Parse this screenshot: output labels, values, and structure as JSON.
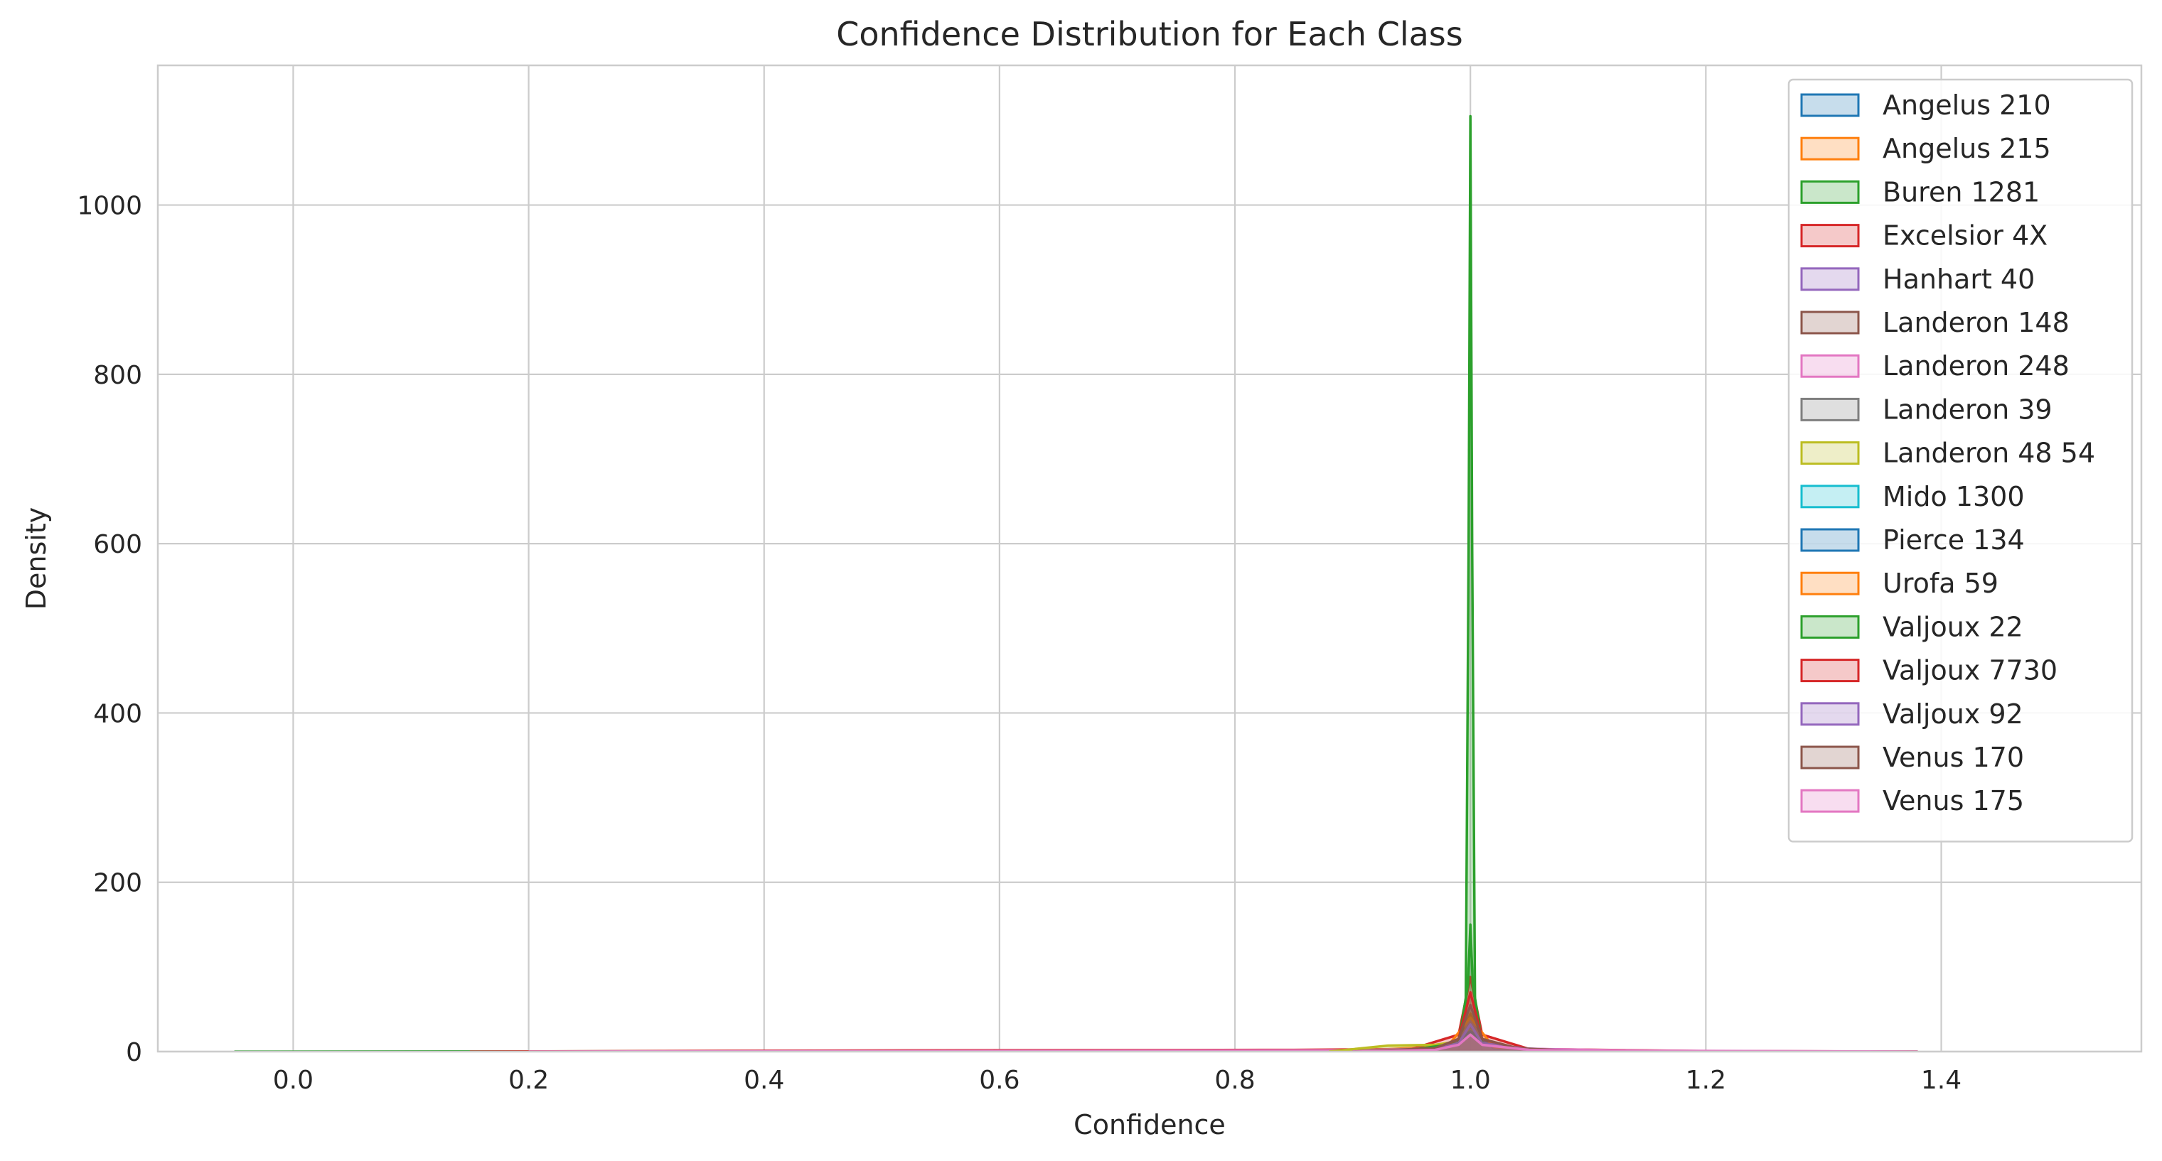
{
  "chart_data": {
    "type": "area",
    "title": "Confidence Distribution for Each Class",
    "xlabel": "Confidence",
    "ylabel": "Density",
    "xlim": [
      -0.115,
      1.57
    ],
    "ylim": [
      0,
      1165
    ],
    "xticks": [
      0.0,
      0.2,
      0.4,
      0.6,
      0.8,
      1.0,
      1.2,
      1.4
    ],
    "xtick_labels": [
      "0.0",
      "0.2",
      "0.4",
      "0.6",
      "0.8",
      "1.0",
      "1.2",
      "1.4"
    ],
    "yticks": [
      0,
      200,
      400,
      600,
      800,
      1000
    ],
    "ytick_labels": [
      "0",
      "200",
      "400",
      "600",
      "800",
      "1000"
    ],
    "grid": true,
    "legend_position": "top-right",
    "series": [
      {
        "name": "Angelus 210",
        "color": "#1f77b4",
        "points": [
          [
            0.88,
            0
          ],
          [
            0.94,
            0.8
          ],
          [
            0.985,
            6
          ],
          [
            1.0,
            22
          ],
          [
            1.015,
            6
          ],
          [
            1.06,
            0.8
          ],
          [
            1.12,
            0
          ]
        ]
      },
      {
        "name": "Angelus 215",
        "color": "#ff7f0e",
        "points": [
          [
            0.86,
            0
          ],
          [
            0.92,
            2
          ],
          [
            0.96,
            5
          ],
          [
            0.99,
            12
          ],
          [
            1.0,
            45
          ],
          [
            1.01,
            12
          ],
          [
            1.04,
            3
          ],
          [
            1.1,
            0
          ]
        ]
      },
      {
        "name": "Buren 1281",
        "color": "#2ca02c",
        "points": [
          [
            -0.05,
            0
          ],
          [
            0.3,
            0.3
          ],
          [
            0.99,
            0.6
          ],
          [
            0.996,
            40
          ],
          [
            0.9985,
            600
          ],
          [
            1.0,
            1105
          ],
          [
            1.0015,
            600
          ],
          [
            1.004,
            40
          ],
          [
            1.01,
            0.6
          ],
          [
            1.38,
            0
          ]
        ]
      },
      {
        "name": "Excelsior 4X",
        "color": "#d62728",
        "points": [
          [
            0.15,
            0
          ],
          [
            0.55,
            1.5
          ],
          [
            0.85,
            2
          ],
          [
            0.95,
            3
          ],
          [
            0.99,
            20
          ],
          [
            1.0,
            88
          ],
          [
            1.01,
            20
          ],
          [
            1.05,
            3
          ],
          [
            1.2,
            0.5
          ],
          [
            1.38,
            0
          ]
        ]
      },
      {
        "name": "Hanhart 40",
        "color": "#9467bd",
        "points": [
          [
            0.9,
            0
          ],
          [
            0.97,
            2
          ],
          [
            0.99,
            10
          ],
          [
            1.0,
            38
          ],
          [
            1.01,
            12
          ],
          [
            1.04,
            4
          ],
          [
            1.12,
            0
          ]
        ]
      },
      {
        "name": "Landeron 148",
        "color": "#8c564b",
        "points": [
          [
            0.9,
            0
          ],
          [
            0.97,
            3
          ],
          [
            0.99,
            12
          ],
          [
            1.0,
            30
          ],
          [
            1.01,
            12
          ],
          [
            1.04,
            3
          ],
          [
            1.1,
            0
          ]
        ]
      },
      {
        "name": "Landeron 248",
        "color": "#e377c2",
        "points": [
          [
            0.2,
            0
          ],
          [
            0.6,
            0.8
          ],
          [
            0.9,
            1.5
          ],
          [
            0.98,
            4
          ],
          [
            1.0,
            16
          ],
          [
            1.02,
            4
          ],
          [
            1.15,
            1
          ],
          [
            1.38,
            0
          ]
        ]
      },
      {
        "name": "Landeron 39",
        "color": "#7f7f7f",
        "points": [
          [
            0.9,
            0
          ],
          [
            0.97,
            2
          ],
          [
            0.99,
            8
          ],
          [
            1.0,
            28
          ],
          [
            1.01,
            8
          ],
          [
            1.05,
            2
          ],
          [
            1.12,
            0
          ]
        ]
      },
      {
        "name": "Landeron 48 54",
        "color": "#bcbd22",
        "points": [
          [
            0.88,
            0
          ],
          [
            0.93,
            7
          ],
          [
            0.97,
            8
          ],
          [
            0.99,
            12
          ],
          [
            1.0,
            25
          ],
          [
            1.01,
            10
          ],
          [
            1.04,
            3
          ],
          [
            1.1,
            0
          ]
        ]
      },
      {
        "name": "Mido 1300",
        "color": "#17becf",
        "points": [
          [
            0.9,
            0
          ],
          [
            0.97,
            2
          ],
          [
            0.99,
            8
          ],
          [
            1.0,
            22
          ],
          [
            1.01,
            8
          ],
          [
            1.05,
            2
          ],
          [
            1.12,
            0
          ]
        ]
      },
      {
        "name": "Pierce 134",
        "color": "#1f77b4",
        "points": [
          [
            0.92,
            0
          ],
          [
            0.98,
            4
          ],
          [
            1.0,
            24
          ],
          [
            1.02,
            4
          ],
          [
            1.08,
            0
          ]
        ]
      },
      {
        "name": "Urofa 59",
        "color": "#ff7f0e",
        "points": [
          [
            0.92,
            0
          ],
          [
            0.98,
            5
          ],
          [
            1.0,
            40
          ],
          [
            1.02,
            5
          ],
          [
            1.08,
            0
          ]
        ]
      },
      {
        "name": "Valjoux 22",
        "color": "#2ca02c",
        "points": [
          [
            0.94,
            0
          ],
          [
            0.99,
            10
          ],
          [
            0.998,
            80
          ],
          [
            1.0,
            150
          ],
          [
            1.002,
            80
          ],
          [
            1.01,
            10
          ],
          [
            1.06,
            0
          ]
        ]
      },
      {
        "name": "Valjoux 7730",
        "color": "#d62728",
        "points": [
          [
            0.9,
            0
          ],
          [
            0.97,
            3
          ],
          [
            0.99,
            15
          ],
          [
            1.0,
            70
          ],
          [
            1.01,
            15
          ],
          [
            1.04,
            3
          ],
          [
            1.1,
            0
          ]
        ]
      },
      {
        "name": "Valjoux 92",
        "color": "#9467bd",
        "points": [
          [
            0.9,
            0
          ],
          [
            0.97,
            3
          ],
          [
            0.99,
            10
          ],
          [
            1.0,
            32
          ],
          [
            1.01,
            10
          ],
          [
            1.05,
            3
          ],
          [
            1.12,
            0
          ]
        ]
      },
      {
        "name": "Venus 170",
        "color": "#8c564b",
        "points": [
          [
            0.9,
            0
          ],
          [
            0.97,
            4
          ],
          [
            0.99,
            15
          ],
          [
            1.0,
            55
          ],
          [
            1.01,
            15
          ],
          [
            1.04,
            4
          ],
          [
            1.1,
            0
          ]
        ]
      },
      {
        "name": "Venus 175",
        "color": "#e377c2",
        "points": [
          [
            0.9,
            0
          ],
          [
            0.97,
            2
          ],
          [
            0.99,
            8
          ],
          [
            1.0,
            20
          ],
          [
            1.01,
            8
          ],
          [
            1.05,
            2
          ],
          [
            1.15,
            0
          ]
        ]
      }
    ]
  }
}
